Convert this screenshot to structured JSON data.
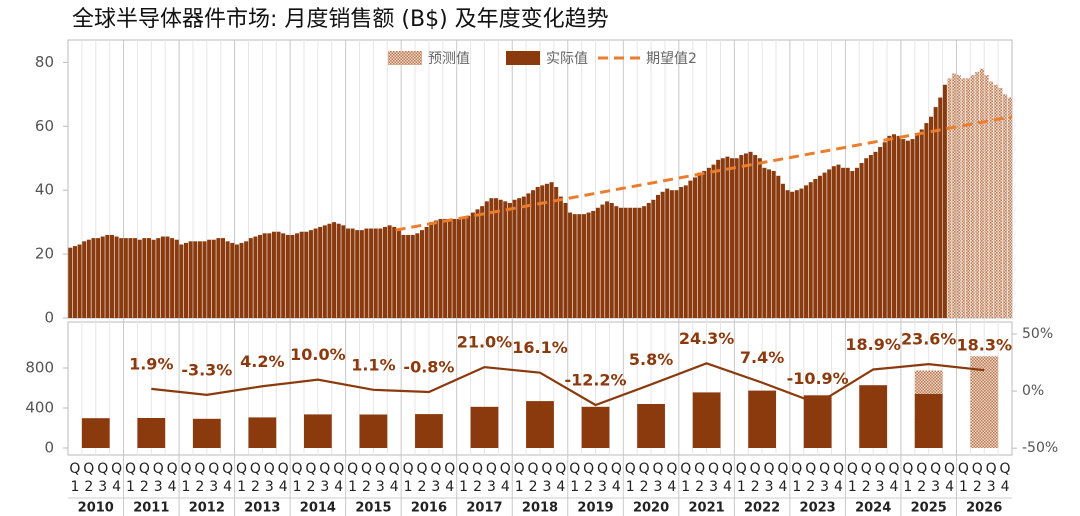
{
  "chart_data": [
    {
      "type": "bar",
      "title": "全球半导体器件市场: 月度销售额 (B$) 及年度变化趋势",
      "xlim": [
        2010,
        2027
      ],
      "ylim": [
        0,
        87
      ],
      "yticks": [
        0,
        20,
        40,
        60,
        80
      ],
      "legend": "top-center",
      "series": [
        {
          "name": "预测值",
          "color": "#c9906c",
          "pattern": "hatched",
          "values": [
            null,
            null,
            null,
            null,
            null,
            null,
            null,
            null,
            null,
            null,
            null,
            null,
            null,
            null,
            null,
            null,
            null,
            null,
            null,
            null,
            null,
            null,
            null,
            null,
            null,
            null,
            null,
            null,
            null,
            null,
            null,
            null,
            null,
            null,
            null,
            null,
            null,
            null,
            null,
            null,
            null,
            null,
            null,
            null,
            null,
            null,
            null,
            null,
            null,
            null,
            null,
            null,
            null,
            null,
            null,
            null,
            null,
            null,
            null,
            null,
            null,
            null,
            null,
            null,
            null,
            null,
            null,
            null,
            null,
            null,
            null,
            null,
            null,
            null,
            null,
            null,
            null,
            null,
            null,
            null,
            null,
            null,
            null,
            null,
            null,
            null,
            null,
            null,
            null,
            null,
            null,
            null,
            null,
            null,
            null,
            null,
            null,
            null,
            null,
            null,
            null,
            null,
            null,
            null,
            null,
            null,
            null,
            null,
            null,
            null,
            null,
            null,
            null,
            null,
            null,
            null,
            null,
            null,
            null,
            null,
            null,
            null,
            null,
            null,
            null,
            null,
            null,
            null,
            null,
            null,
            null,
            null,
            null,
            null,
            null,
            null,
            null,
            null,
            null,
            null,
            null,
            null,
            null,
            null,
            null,
            null,
            null,
            null,
            null,
            null,
            null,
            null,
            null,
            null,
            null,
            null,
            null,
            null,
            null,
            null,
            null,
            null,
            null,
            null,
            null,
            null,
            null,
            null,
            null,
            null,
            null,
            null,
            null,
            null,
            null,
            null,
            null,
            null,
            null,
            null,
            null,
            null,
            null,
            null,
            null,
            null,
            null,
            null,
            null,
            null,
            75,
            76.5,
            76,
            75,
            75,
            76,
            77,
            78,
            76,
            74,
            73,
            72,
            70,
            69
          ]
        },
        {
          "name": "实际值",
          "color": "#8b3a0e",
          "values": [
            22,
            22.5,
            23,
            24,
            24.5,
            25,
            25,
            25.5,
            26,
            26,
            25.5,
            25,
            25,
            25,
            25,
            24.5,
            25,
            25,
            24.5,
            25,
            25.5,
            25.5,
            25,
            24.5,
            23,
            23.5,
            24,
            24,
            24,
            24,
            24.5,
            24.5,
            25,
            25,
            24,
            23.5,
            23,
            23.5,
            24,
            25,
            25.5,
            26,
            26.5,
            26.5,
            27,
            27,
            26.5,
            26,
            26,
            26.5,
            27,
            27,
            27.5,
            28,
            28.5,
            29,
            29.5,
            30,
            29.5,
            29,
            28,
            28,
            27.5,
            27.5,
            28,
            28,
            28,
            28,
            28.5,
            29,
            28.5,
            28,
            26,
            26,
            26,
            26.5,
            27.5,
            28.5,
            30,
            30.5,
            31,
            31,
            31,
            31,
            31,
            31.5,
            32,
            33,
            34,
            35,
            36.5,
            37.5,
            37.5,
            37,
            36.5,
            36,
            37,
            37.5,
            38,
            39,
            40,
            41,
            41.5,
            42,
            42.5,
            41,
            38,
            36,
            33,
            32.5,
            32.5,
            32.5,
            33,
            33.5,
            34.5,
            35.5,
            36.5,
            36,
            35,
            34.5,
            34.5,
            34.5,
            34.5,
            34.5,
            35,
            36,
            37,
            38.5,
            39.5,
            40.5,
            40,
            40,
            41,
            41.5,
            43,
            44,
            45.5,
            46,
            47,
            48,
            49.5,
            50,
            50.5,
            50,
            50,
            51,
            51.5,
            52,
            51,
            50,
            47,
            46.5,
            46,
            44.5,
            42,
            40,
            39.5,
            40,
            40.5,
            41.5,
            42.5,
            43.5,
            44.5,
            45.5,
            46.5,
            47.5,
            48,
            47,
            47,
            46,
            47,
            48.5,
            50,
            51,
            52,
            53.5,
            55,
            57,
            57.5,
            57,
            56,
            55.5,
            56,
            57.5,
            59,
            61,
            63,
            66,
            69,
            73,
            null,
            null,
            null,
            null,
            null,
            null,
            null,
            null,
            null,
            null,
            null,
            null,
            null,
            null
          ]
        },
        {
          "name": "期望值2",
          "type": "line",
          "color": "#ea7d2e",
          "dashed": true,
          "x": [
            2015.9,
            2027
          ],
          "values": [
            27.5,
            63
          ]
        }
      ]
    },
    {
      "type": "bar",
      "categories": [
        "2010",
        "2011",
        "2012",
        "2013",
        "2014",
        "2015",
        "2016",
        "2017",
        "2018",
        "2019",
        "2020",
        "2021",
        "2022",
        "2023",
        "2024",
        "2025",
        "2026"
      ],
      "quarter_prefix": "Q",
      "quarter_numbers": [
        "1",
        "2",
        "3",
        "4"
      ],
      "ylim": [
        -70,
        1260
      ],
      "yticks": [
        0,
        400,
        800
      ],
      "y2lim": [
        -56,
        60.5
      ],
      "y2ticks": [
        {
          "value": 50,
          "label": "50%"
        },
        {
          "value": 0,
          "label": "0%"
        },
        {
          "value": -50,
          "label": "-50%"
        }
      ],
      "series": [
        {
          "color": "#c9906c",
          "pattern": "hatched",
          "values": [
            null,
            null,
            null,
            null,
            null,
            null,
            null,
            null,
            null,
            null,
            null,
            null,
            null,
            null,
            null,
            775,
            917
          ]
        },
        {
          "color": "#8b3a0e",
          "values": [
            298,
            300,
            292,
            306,
            336,
            335,
            339,
            412,
            469,
            412,
            440,
            556,
            574,
            527,
            628,
            540,
            null
          ]
        },
        {
          "type": "line",
          "axis": "y2",
          "color": "#8b3a0e",
          "values": [
            null,
            1.9,
            -3.3,
            4.2,
            10.0,
            1.1,
            -0.8,
            21.0,
            16.1,
            -12.2,
            5.8,
            24.3,
            7.4,
            -10.9,
            18.9,
            23.6,
            18.3
          ],
          "value_labels": [
            null,
            "1.9%",
            "-3.3%",
            "4.2%",
            "10.0%",
            "1.1%",
            "-0.8%",
            "21.0%",
            "16.1%",
            "-12.2%",
            "5.8%",
            "24.3%",
            "7.4%",
            "-10.9%",
            "18.9%",
            "23.6%",
            "18.3%"
          ]
        }
      ]
    }
  ]
}
